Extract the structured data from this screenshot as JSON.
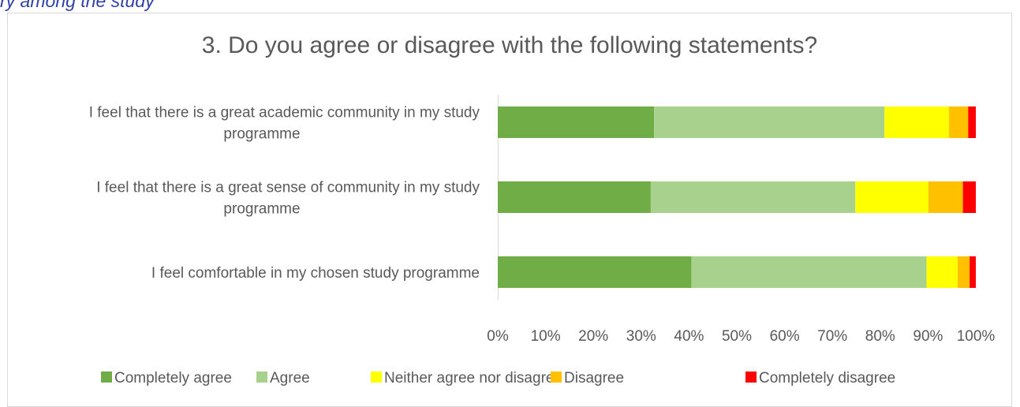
{
  "page": {
    "heading_fragment": "ry among the study"
  },
  "chart_data": {
    "type": "bar",
    "orientation": "horizontal",
    "stacked": "percent",
    "title": "3. Do you agree or disagree with the following statements?",
    "categories": [
      [
        "I feel that there is a great academic community in my study",
        "programme"
      ],
      [
        "I feel that there is a great sense of community in my study",
        "programme"
      ],
      [
        "I feel comfortable in my chosen study programme"
      ]
    ],
    "series": [
      {
        "name": "Completely agree",
        "color": "#70ad47",
        "values": [
          32.7,
          32.0,
          40.5
        ]
      },
      {
        "name": "Agree",
        "color": "#a9d18e",
        "values": [
          48.2,
          42.8,
          49.2
        ]
      },
      {
        "name": "Neither agree nor disagree",
        "color": "#ffff00",
        "values": [
          13.5,
          15.3,
          6.5
        ]
      },
      {
        "name": "Disagree",
        "color": "#ffc000",
        "values": [
          4.0,
          7.2,
          2.5
        ]
      },
      {
        "name": "Completely disagree",
        "color": "#ff0000",
        "values": [
          1.6,
          2.7,
          1.3
        ]
      }
    ],
    "xlim": [
      0,
      100
    ],
    "x_ticks": [
      "0%",
      "10%",
      "20%",
      "30%",
      "40%",
      "50%",
      "60%",
      "70%",
      "80%",
      "90%",
      "100%"
    ],
    "grid": false,
    "legend_position": "bottom"
  }
}
